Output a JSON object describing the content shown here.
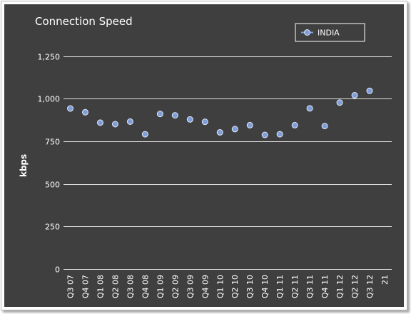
{
  "chart_data": {
    "type": "scatter",
    "title": "Connection Speed",
    "xlabel": "",
    "ylabel": "kbps",
    "ylim": [
      0,
      1375
    ],
    "yticks": [
      0,
      250,
      500,
      750,
      1000,
      1250
    ],
    "ytick_labels": [
      "0",
      "250",
      "500",
      "750",
      "1,000",
      "1,250"
    ],
    "grid": true,
    "legend_position": "top-right",
    "categories": [
      "Q3 07",
      "Q4 07",
      "Q1 08",
      "Q2 08",
      "Q3 08",
      "Q4 08",
      "Q1 09",
      "Q2 09",
      "Q3 09",
      "Q4 09",
      "Q1 10",
      "Q2 10",
      "Q3 10",
      "Q4 10",
      "Q1 11",
      "Q2 11",
      "Q3 11",
      "Q4 11",
      "Q1 12",
      "Q2 12",
      "Q3 12",
      "21"
    ],
    "series": [
      {
        "name": "INDIA",
        "color": "#7f9ed8",
        "values": [
          943,
          921,
          860,
          851,
          866,
          792,
          911,
          903,
          879,
          865,
          803,
          822,
          845,
          788,
          792,
          845,
          944,
          840,
          978,
          1021,
          1047,
          null
        ]
      }
    ]
  }
}
